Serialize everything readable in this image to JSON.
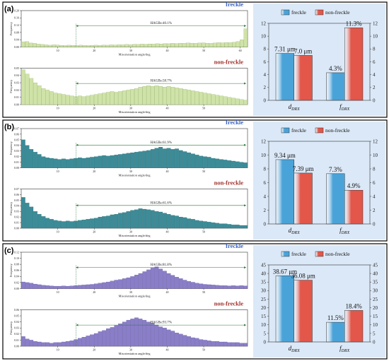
{
  "colors": {
    "freckle_text": "#3a63c9",
    "nonfreckle_text": "#a0302a",
    "bar_right_blue": "#4aa3d8",
    "bar_right_red": "#e2574a",
    "right_bg": "#dbe8f7",
    "hist_a": "#cfe3a8",
    "hist_a_edge": "#8aa860",
    "hist_b": "#3b8c98",
    "hist_b_edge": "#1f5e66",
    "hist_c": "#8a7ec8",
    "hist_c_edge": "#5a4e9c",
    "hagb_line": "#2b7a3a"
  },
  "panels": [
    {
      "tag": "(a)",
      "hist_color_key": "hist_a",
      "hists": [
        {
          "name_label": "freckle",
          "name_color_key": "freckle_text",
          "hagb_text": "HAGBs:40.1%",
          "ylabel": "Frequency",
          "xlabel": "Misorientation angle/deg",
          "yticks": [
            "0.00",
            "0.04",
            "0.08",
            "0.12",
            "0.16",
            "0.20"
          ],
          "ymax": 0.2,
          "xticks": [
            "10",
            "20",
            "30",
            "40",
            "50",
            "60"
          ],
          "values": [
            0.028,
            0.03,
            0.022,
            0.02,
            0.016,
            0.014,
            0.012,
            0.01,
            0.012,
            0.011,
            0.009,
            0.008,
            0.01,
            0.009,
            0.008,
            0.01,
            0.009,
            0.008,
            0.009,
            0.01,
            0.009,
            0.011,
            0.01,
            0.012,
            0.011,
            0.013,
            0.012,
            0.014,
            0.013,
            0.015,
            0.014,
            0.016,
            0.015,
            0.017,
            0.016,
            0.018,
            0.017,
            0.019,
            0.018,
            0.02,
            0.019,
            0.021,
            0.02,
            0.022,
            0.021,
            0.02,
            0.022,
            0.023,
            0.021,
            0.02,
            0.022,
            0.024,
            0.023,
            0.025,
            0.024,
            0.026,
            0.03,
            0.04,
            0.1
          ]
        },
        {
          "name_label": "non-freckle",
          "name_color_key": "nonfreckle_text",
          "hagb_text": "HAGBs:58.7%",
          "ylabel": "Frequency",
          "xlabel": "Misorientation angle/deg",
          "yticks": [
            "0.00",
            "0.01",
            "0.02",
            "0.03",
            "0.04",
            "0.05"
          ],
          "ymax": 0.05,
          "xticks": [
            "10",
            "20",
            "30",
            "40",
            "50"
          ],
          "values": [
            0.048,
            0.042,
            0.036,
            0.03,
            0.026,
            0.022,
            0.02,
            0.018,
            0.016,
            0.015,
            0.014,
            0.013,
            0.012,
            0.011,
            0.012,
            0.011,
            0.012,
            0.013,
            0.014,
            0.015,
            0.016,
            0.017,
            0.018,
            0.017,
            0.018,
            0.019,
            0.02,
            0.021,
            0.022,
            0.024,
            0.025,
            0.026,
            0.025,
            0.026,
            0.025,
            0.024,
            0.025,
            0.024,
            0.023,
            0.022,
            0.021,
            0.02,
            0.019,
            0.018,
            0.017,
            0.016,
            0.015,
            0.014,
            0.013,
            0.012,
            0.011,
            0.01,
            0.009,
            0.008,
            0.007,
            0.006
          ]
        }
      ],
      "right": {
        "legend": [
          "freckle",
          "non-freckle"
        ],
        "ymax": 12,
        "yticks": [
          "0",
          "2",
          "4",
          "6",
          "8",
          "10",
          "12"
        ],
        "categories": [
          "d_DRX",
          "f_DRX"
        ],
        "cat_main": [
          "d",
          "f"
        ],
        "cat_sub": [
          "DRX",
          "DRX"
        ],
        "freckle": [
          7.31,
          4.3
        ],
        "nonfreckle": [
          7.0,
          11.3
        ],
        "labels_freckle": [
          "7.31 μm",
          "4.3%"
        ],
        "labels_nonfreckle": [
          "7.0 μm",
          "11.3%"
        ]
      }
    },
    {
      "tag": "(b)",
      "hist_color_key": "hist_b",
      "hists": [
        {
          "name_label": "freckle",
          "name_color_key": "freckle_text",
          "hagb_text": "HAGBs:61.9%",
          "ylabel": "Frequency",
          "xlabel": "Misorientation angle/deg",
          "yticks": [
            "0.00",
            "0.01",
            "0.02",
            "0.03",
            "0.04",
            "0.05",
            "0.06",
            "0.07"
          ],
          "ymax": 0.07,
          "xticks": [
            "10",
            "20",
            "30",
            "40",
            "50"
          ],
          "values": [
            0.05,
            0.04,
            0.033,
            0.028,
            0.024,
            0.02,
            0.018,
            0.017,
            0.016,
            0.015,
            0.016,
            0.015,
            0.016,
            0.017,
            0.018,
            0.017,
            0.018,
            0.019,
            0.02,
            0.021,
            0.022,
            0.021,
            0.022,
            0.023,
            0.024,
            0.025,
            0.026,
            0.027,
            0.028,
            0.029,
            0.03,
            0.031,
            0.033,
            0.035,
            0.037,
            0.034,
            0.035,
            0.033,
            0.034,
            0.031,
            0.029,
            0.027,
            0.025,
            0.023,
            0.021,
            0.02,
            0.019,
            0.017,
            0.016,
            0.015,
            0.014,
            0.013,
            0.012,
            0.011,
            0.01,
            0.009
          ]
        },
        {
          "name_label": "non-freckle",
          "name_color_key": "nonfreckle_text",
          "hagb_text": "HAGBs:61.6%",
          "ylabel": "Frequency",
          "xlabel": "Misorientation angle/deg",
          "yticks": [
            "0.00",
            "0.01",
            "0.02",
            "0.03",
            "0.04",
            "0.05",
            "0.06",
            "0.07"
          ],
          "ymax": 0.07,
          "xticks": [
            "10",
            "20",
            "30",
            "40",
            "50"
          ],
          "values": [
            0.055,
            0.045,
            0.038,
            0.03,
            0.025,
            0.021,
            0.018,
            0.016,
            0.014,
            0.013,
            0.012,
            0.013,
            0.012,
            0.013,
            0.014,
            0.015,
            0.016,
            0.017,
            0.018,
            0.02,
            0.021,
            0.022,
            0.024,
            0.025,
            0.027,
            0.028,
            0.03,
            0.032,
            0.033,
            0.035,
            0.034,
            0.033,
            0.032,
            0.03,
            0.029,
            0.027,
            0.025,
            0.023,
            0.022,
            0.02,
            0.019,
            0.017,
            0.016,
            0.014,
            0.013,
            0.012,
            0.011,
            0.01,
            0.009,
            0.008,
            0.008,
            0.007,
            0.006,
            0.006,
            0.005,
            0.005
          ]
        }
      ],
      "right": {
        "legend": [
          "freckle",
          "non-freckle"
        ],
        "ymax": 12,
        "yticks": [
          "0",
          "2",
          "4",
          "6",
          "8",
          "10",
          "12"
        ],
        "categories": [
          "d_DRX",
          "f_DRX"
        ],
        "cat_main": [
          "d",
          "f"
        ],
        "cat_sub": [
          "DRX",
          "DRX"
        ],
        "freckle": [
          9.34,
          7.3
        ],
        "nonfreckle": [
          7.39,
          4.9
        ],
        "labels_freckle": [
          "9.34 μm",
          "7.3%"
        ],
        "labels_nonfreckle": [
          "7.39 μm",
          "4.9%"
        ]
      }
    },
    {
      "tag": "(c)",
      "hist_color_key": "hist_c",
      "hists": [
        {
          "name_label": "freckle",
          "name_color_key": "freckle_text",
          "hagb_text": "HAGBs:81.8%",
          "ylabel": "Frequency",
          "xlabel": "Misorientation angle/deg",
          "yticks": [
            "0.00",
            "0.02",
            "0.04",
            "0.06",
            "0.08",
            "0.10",
            "0.12"
          ],
          "ymax": 0.12,
          "xticks": [
            "10",
            "20",
            "30",
            "40",
            "50"
          ],
          "values": [
            0.022,
            0.02,
            0.018,
            0.015,
            0.013,
            0.011,
            0.01,
            0.009,
            0.008,
            0.008,
            0.009,
            0.008,
            0.009,
            0.01,
            0.011,
            0.012,
            0.013,
            0.014,
            0.016,
            0.018,
            0.02,
            0.022,
            0.025,
            0.028,
            0.03,
            0.033,
            0.036,
            0.04,
            0.045,
            0.05,
            0.056,
            0.062,
            0.068,
            0.072,
            0.065,
            0.058,
            0.05,
            0.044,
            0.038,
            0.033,
            0.028,
            0.024,
            0.021,
            0.018,
            0.016,
            0.014,
            0.013,
            0.012,
            0.011,
            0.01,
            0.01,
            0.009,
            0.01,
            0.009,
            0.01,
            0.009
          ]
        },
        {
          "name_label": "non-freckle",
          "name_color_key": "nonfreckle_text",
          "hagb_text": "HAGBs:93.7%",
          "ylabel": "Frequency",
          "xlabel": "Misorientation angle/deg",
          "yticks": [
            "0.00",
            "0.01",
            "0.02",
            "0.03",
            "0.04",
            "0.05",
            "0.06"
          ],
          "ymax": 0.06,
          "xticks": [
            "10",
            "20",
            "30",
            "40",
            "50"
          ],
          "values": [
            0.016,
            0.012,
            0.01,
            0.008,
            0.007,
            0.006,
            0.006,
            0.005,
            0.006,
            0.006,
            0.007,
            0.008,
            0.009,
            0.011,
            0.013,
            0.015,
            0.017,
            0.019,
            0.021,
            0.024,
            0.026,
            0.029,
            0.031,
            0.034,
            0.037,
            0.04,
            0.043,
            0.045,
            0.047,
            0.045,
            0.043,
            0.04,
            0.038,
            0.035,
            0.032,
            0.03,
            0.027,
            0.025,
            0.022,
            0.02,
            0.018,
            0.016,
            0.014,
            0.013,
            0.011,
            0.01,
            0.009,
            0.008,
            0.008,
            0.007,
            0.007,
            0.006,
            0.006,
            0.006,
            0.005,
            0.005
          ]
        }
      ],
      "right": {
        "legend": [
          "freckle",
          "non-freckle"
        ],
        "ymax": 45,
        "yticks": [
          "0",
          "5",
          "10",
          "15",
          "20",
          "25",
          "30",
          "35",
          "40",
          "45"
        ],
        "categories": [
          "d_DRX",
          "f_DRX"
        ],
        "cat_main": [
          "d",
          "f"
        ],
        "cat_sub": [
          "DRX",
          "DRX"
        ],
        "freckle": [
          38.67,
          11.5
        ],
        "nonfreckle": [
          36.08,
          18.4
        ],
        "labels_freckle": [
          "38.67 μm",
          "11.5%"
        ],
        "labels_nonfreckle": [
          "36.08 μm",
          "18.4%"
        ]
      }
    }
  ],
  "chart_data": [
    {
      "type": "bar",
      "panel": "(a)",
      "categories": [
        "d_DRX",
        "f_DRX"
      ],
      "series": [
        {
          "name": "freckle",
          "values": [
            7.31,
            4.3
          ]
        },
        {
          "name": "non-freckle",
          "values": [
            7.0,
            11.3
          ]
        }
      ],
      "ylim": [
        0,
        12
      ]
    },
    {
      "type": "bar",
      "panel": "(b)",
      "categories": [
        "d_DRX",
        "f_DRX"
      ],
      "series": [
        {
          "name": "freckle",
          "values": [
            9.34,
            7.3
          ]
        },
        {
          "name": "non-freckle",
          "values": [
            7.39,
            4.9
          ]
        }
      ],
      "ylim": [
        0,
        12
      ]
    },
    {
      "type": "bar",
      "panel": "(c)",
      "categories": [
        "d_DRX",
        "f_DRX"
      ],
      "series": [
        {
          "name": "freckle",
          "values": [
            38.67,
            11.5
          ]
        },
        {
          "name": "non-freckle",
          "values": [
            36.08,
            18.4
          ]
        }
      ],
      "ylim": [
        0,
        45
      ]
    }
  ]
}
